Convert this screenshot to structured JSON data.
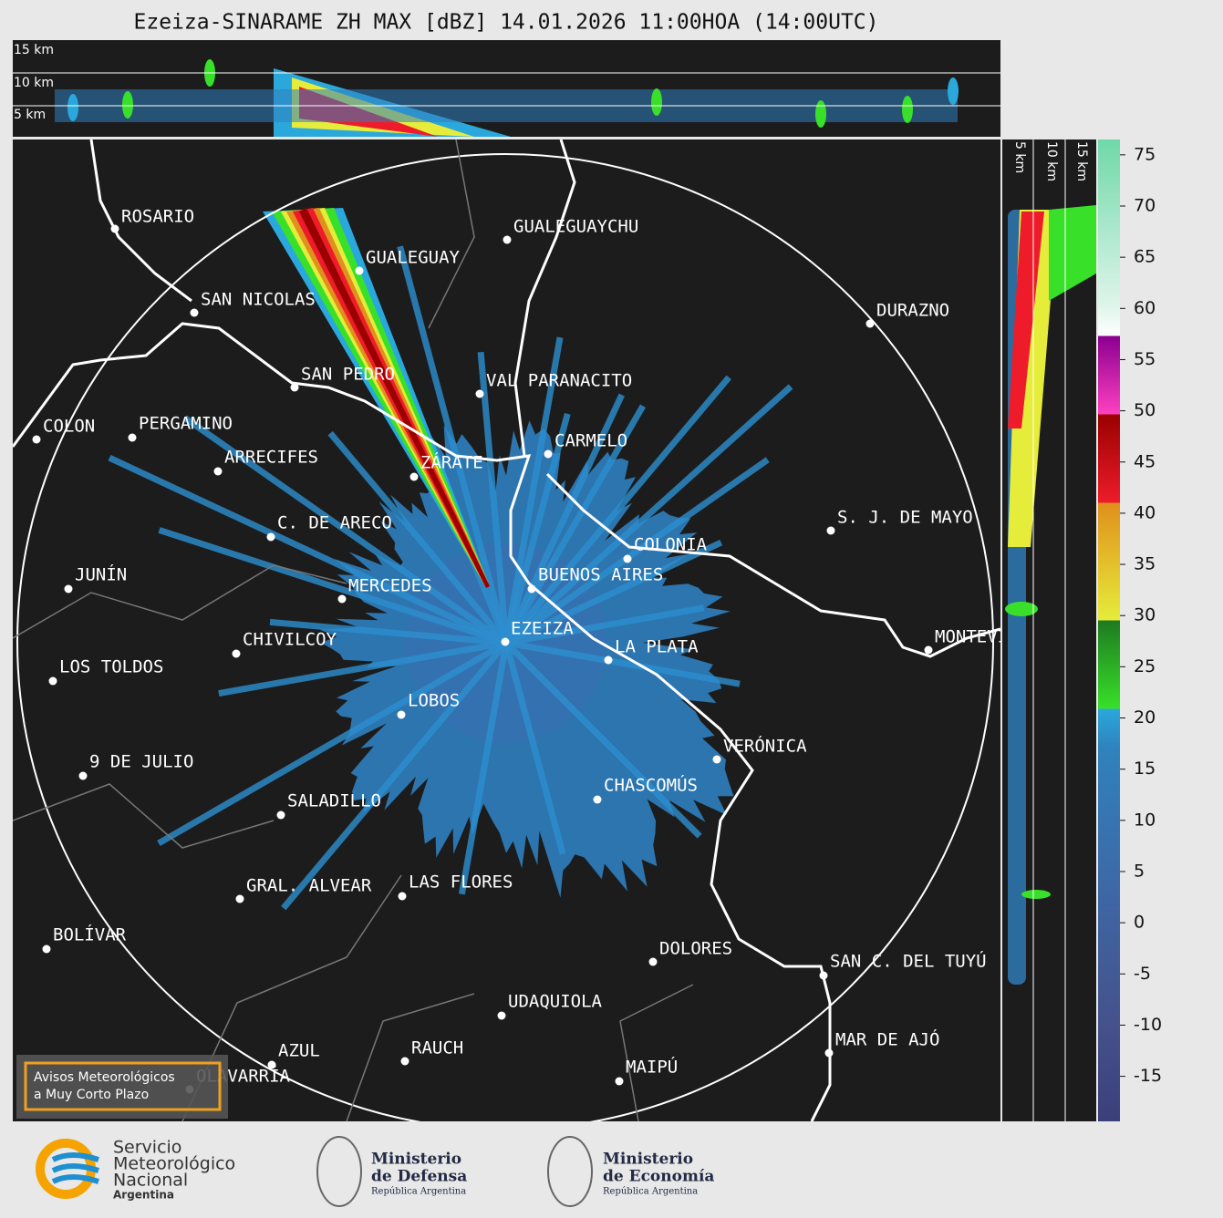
{
  "title": "Ezeiza-SINARAME ZH MAX [dBZ] 14.01.2026 11:00HOA (14:00UTC)",
  "top_panel": {
    "height_labels": [
      "15 km",
      "10 km",
      "5 km"
    ]
  },
  "side_panel": {
    "height_labels": [
      "5 km",
      "10 km",
      "15 km"
    ]
  },
  "colorbar": {
    "lim": [
      -19.4,
      76.5
    ],
    "ticks": [
      -15,
      -10,
      -5,
      0,
      5,
      10,
      15,
      20,
      25,
      30,
      35,
      40,
      45,
      50,
      55,
      60,
      65,
      70,
      75
    ]
  },
  "cities": [
    "ROSARIO",
    "GUALEGUAYCHU",
    "GUALEGUAY",
    "SAN NICOLAS",
    "DURAZNO",
    "SAN PEDRO",
    "VAL PARANACITO",
    "COLON",
    "PERGAMINO",
    "CARMELO",
    "ARRECIFES",
    "ZÁRATE",
    "C. DE ARECO",
    "S. J. DE MAYO",
    "COLONIA",
    "JUNÍN",
    "BUENOS AIRES",
    "MERCEDES",
    "EZEIZA",
    "MONTEVIDEO",
    "CHIVILCOY",
    "LA PLATA",
    "LOS TOLDOS",
    "LOBOS",
    "VERÓNICA",
    "9 DE JULIO",
    "CHASCOMÚS",
    "SALADILLO",
    "GRAL. ALVEAR",
    "LAS FLORES",
    "BOLÍVAR",
    "DOLORES",
    "SAN C. DEL TUYÚ",
    "UDAQUIOLA",
    "MAR DE AJÓ",
    "AZUL",
    "RAUCH",
    "OLAVARRÍA",
    "MAIPÚ"
  ],
  "warning_box": [
    "Avisos Meteorológicos",
    "a Muy Corto Plazo"
  ],
  "footer": {
    "smn": [
      "Servicio",
      "Meteorológico",
      "Nacional",
      "Argentina"
    ],
    "defensa": [
      "Ministerio",
      "de Defensa",
      "República Argentina"
    ],
    "economia": [
      "Ministerio",
      "de Economía",
      "República Argentina"
    ]
  }
}
